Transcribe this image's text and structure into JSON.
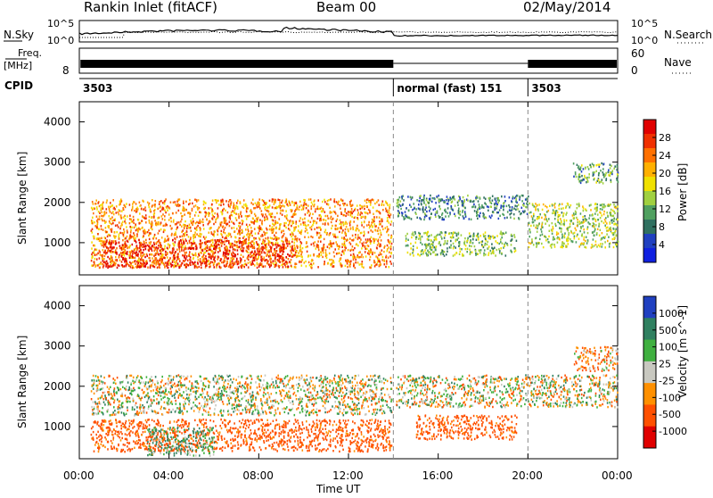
{
  "header": {
    "station": "Rankin Inlet (fitACF)",
    "beam": "Beam 00",
    "date": "02/May/2014"
  },
  "noise_panel": {
    "left_label": "N.Sky",
    "right_label": "N.Search",
    "tick_top": "10^5",
    "tick_bottom": "10^0"
  },
  "freq_panel": {
    "left_label_top": "Freq.",
    "left_label_bottom": "[MHz]",
    "left_tick": "8",
    "right_label": "Nave",
    "right_tick_top": "60",
    "right_tick_bottom": "0"
  },
  "cpid_panel": {
    "label": "CPID",
    "segments": [
      {
        "start_hour": 0,
        "end_hour": 14,
        "text": "3503"
      },
      {
        "start_hour": 14,
        "end_hour": 20,
        "text": "normal (fast) 151"
      },
      {
        "start_hour": 20,
        "end_hour": 24,
        "text": "3503"
      }
    ]
  },
  "time_axis": {
    "xlabel": "Time UT",
    "ticks": [
      "00:00",
      "04:00",
      "08:00",
      "12:00",
      "16:00",
      "20:00",
      "00:00"
    ]
  },
  "power_colorbar": {
    "label": "Power [dB]",
    "ticks": [
      "28",
      "24",
      "20",
      "16",
      "12",
      "8",
      "4"
    ],
    "colors": [
      "#e00000",
      "#f03000",
      "#ff7000",
      "#ffb000",
      "#f0e000",
      "#a0d040",
      "#50a060",
      "#307060",
      "#2040c0",
      "#1020e0"
    ]
  },
  "velocity_colorbar": {
    "label": "Velocity [m s^-1]",
    "ticks": [
      "1000",
      "500",
      "100",
      "25",
      "-25",
      "-100",
      "-500",
      "-1000"
    ],
    "colors": [
      "#2040c0",
      "#308060",
      "#40b040",
      "#c8c8c0",
      "#ff9000",
      "#ff5000",
      "#e00000"
    ]
  },
  "chart_data": [
    {
      "type": "heatmap",
      "title": "Power",
      "xlabel": "Time UT",
      "ylabel": "Slant Range [km]",
      "xlim": [
        0,
        24
      ],
      "ylim": [
        200,
        4500
      ],
      "yticks": [
        "4000",
        "3000",
        "2000",
        "1000"
      ],
      "colorbar_label": "Power [dB]",
      "colorbar_range": [
        0,
        30
      ],
      "regions": [
        {
          "t0": 0.5,
          "t1": 13.9,
          "r0": 400,
          "r1": 2100,
          "value": 22
        },
        {
          "t0": 1.0,
          "t1": 9.5,
          "r0": 400,
          "r1": 1100,
          "value": 28
        },
        {
          "t0": 14.1,
          "t1": 20.0,
          "r0": 1600,
          "r1": 2200,
          "value": 8
        },
        {
          "t0": 14.5,
          "t1": 19.5,
          "r0": 700,
          "r1": 1300,
          "value": 12
        },
        {
          "t0": 20.0,
          "t1": 24.0,
          "r0": 900,
          "r1": 2000,
          "value": 14
        },
        {
          "t0": 22.0,
          "t1": 24.0,
          "r0": 2500,
          "r1": 3000,
          "value": 10
        }
      ]
    },
    {
      "type": "heatmap",
      "title": "Velocity",
      "xlabel": "Time UT",
      "ylabel": "Slant Range [km]",
      "xlim": [
        0,
        24
      ],
      "ylim": [
        200,
        4500
      ],
      "yticks": [
        "4000",
        "3000",
        "2000",
        "1000"
      ],
      "colorbar_label": "Velocity [m s^-1]",
      "colorbar_range": [
        -1000,
        1000
      ],
      "regions": [
        {
          "t0": 0.5,
          "t1": 13.9,
          "r0": 1300,
          "r1": 2300,
          "value": 0
        },
        {
          "t0": 0.5,
          "t1": 13.9,
          "r0": 400,
          "r1": 1200,
          "value": -200
        },
        {
          "t0": 3.0,
          "t1": 6.0,
          "r0": 300,
          "r1": 1000,
          "value": 100
        },
        {
          "t0": 14.1,
          "t1": 24.0,
          "r0": 1500,
          "r1": 2300,
          "value": 0
        },
        {
          "t0": 15.0,
          "t1": 19.5,
          "r0": 700,
          "r1": 1300,
          "value": -200
        },
        {
          "t0": 22.0,
          "t1": 24.0,
          "r0": 2400,
          "r1": 3000,
          "value": -100
        }
      ]
    }
  ]
}
